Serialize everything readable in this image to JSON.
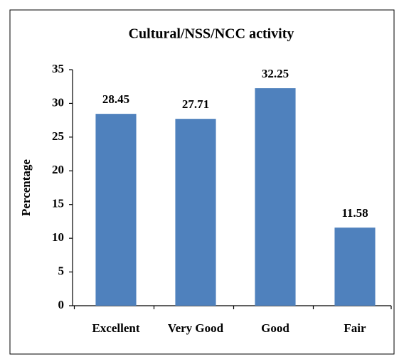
{
  "chart_data": {
    "type": "bar",
    "title": "Cultural/NSS/NCC activity",
    "ylabel": "Percentage",
    "categories": [
      "Excellent",
      "Very Good",
      "Good",
      "Fair"
    ],
    "values": [
      28.45,
      27.71,
      32.25,
      11.58
    ],
    "color": "#4f81bd",
    "ylim": [
      0,
      35
    ],
    "yticks": [
      0,
      5,
      10,
      15,
      20,
      25,
      30,
      35
    ],
    "grid": false
  }
}
